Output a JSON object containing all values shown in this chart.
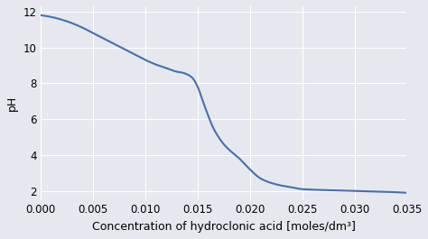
{
  "title": "",
  "xlabel": "Concentration of hydroclonic acid [moles/dm³]",
  "ylabel": "pH",
  "xlim": [
    0.0,
    0.035
  ],
  "ylim": [
    1.5,
    12.3
  ],
  "yticks": [
    2,
    4,
    6,
    8,
    10,
    12
  ],
  "xticks": [
    0.0,
    0.005,
    0.01,
    0.015,
    0.02,
    0.025,
    0.03,
    0.035
  ],
  "line_color": "#4c6ea8",
  "background_color": "#e5e8ef",
  "grid_color": "#ffffff",
  "curve_points": {
    "x": [
      0.0,
      0.001,
      0.002,
      0.003,
      0.004,
      0.005,
      0.006,
      0.007,
      0.008,
      0.009,
      0.01,
      0.011,
      0.012,
      0.013,
      0.0135,
      0.014,
      0.0145,
      0.015,
      0.0155,
      0.016,
      0.0165,
      0.017,
      0.0175,
      0.018,
      0.019,
      0.02,
      0.021,
      0.022,
      0.023,
      0.024,
      0.025,
      0.027,
      0.03,
      0.033,
      0.035
    ],
    "pH": [
      11.8,
      11.7,
      11.55,
      11.35,
      11.1,
      10.8,
      10.5,
      10.2,
      9.9,
      9.6,
      9.3,
      9.05,
      8.85,
      8.65,
      8.6,
      8.5,
      8.3,
      7.8,
      7.0,
      6.2,
      5.5,
      5.0,
      4.6,
      4.3,
      3.8,
      3.2,
      2.7,
      2.45,
      2.3,
      2.2,
      2.1,
      2.05,
      2.0,
      1.95,
      1.9
    ]
  }
}
